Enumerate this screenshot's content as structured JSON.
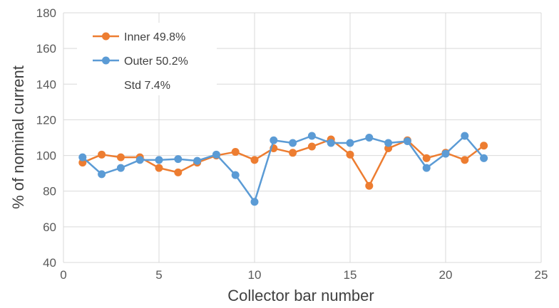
{
  "chart_data": {
    "type": "line",
    "xlabel": "Collector bar number",
    "ylabel": "% of nominal current",
    "xlim": [
      0,
      25
    ],
    "ylim": [
      40,
      180
    ],
    "xticks": [
      0,
      5,
      10,
      15,
      20,
      25
    ],
    "yticks": [
      40,
      60,
      80,
      100,
      120,
      140,
      160,
      180
    ],
    "grid": "vertical and horizontal",
    "legend_position": "top-left",
    "x": [
      1,
      2,
      3,
      4,
      5,
      6,
      7,
      8,
      9,
      10,
      11,
      12,
      13,
      14,
      15,
      16,
      17,
      18,
      19,
      20,
      21,
      22
    ],
    "series": [
      {
        "name": "Inner 49.8%",
        "color": "#ED7D31",
        "values": [
          96,
          100.5,
          99,
          99,
          93,
          90.5,
          96,
          100,
          102,
          97.5,
          104,
          101.5,
          105,
          109,
          100.5,
          83,
          104,
          108.5,
          98.5,
          101.5,
          97.5,
          105.5
        ]
      },
      {
        "name": "Outer 50.2%",
        "color": "#5B9BD5",
        "values": [
          99,
          89.5,
          93,
          97.5,
          97.5,
          98,
          97,
          100.5,
          89,
          74,
          108.5,
          107,
          111,
          107,
          107,
          110,
          107,
          108,
          93,
          101,
          111,
          98.5
        ]
      }
    ],
    "annotation": "Std 7.4%"
  }
}
